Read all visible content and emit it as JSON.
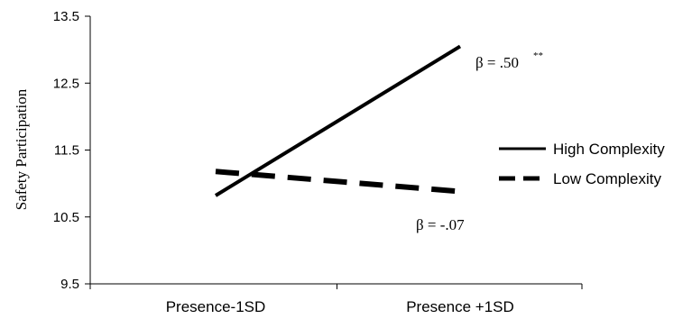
{
  "chart_data": {
    "type": "line",
    "ylabel": "Safety Participation",
    "xlabel": "",
    "categories": [
      "Presence-1SD",
      "Presence +1SD"
    ],
    "yticks": [
      "9.5",
      "10.5",
      "11.5",
      "12.5",
      "13.5"
    ],
    "ylim": [
      9.5,
      13.5
    ],
    "grid": false,
    "legend_position": "right",
    "colors": {
      "line": "#000000",
      "axis": "#000000"
    },
    "series": [
      {
        "name": "High Complexity",
        "style": "solid",
        "values": [
          10.82,
          13.05
        ]
      },
      {
        "name": "Low Complexity",
        "style": "dashed",
        "values": [
          11.18,
          10.88
        ]
      }
    ],
    "annotations": [
      {
        "text": "β = .50",
        "superscript": "**",
        "series": "High Complexity"
      },
      {
        "text": "β = -.07",
        "series": "Low Complexity"
      }
    ]
  }
}
